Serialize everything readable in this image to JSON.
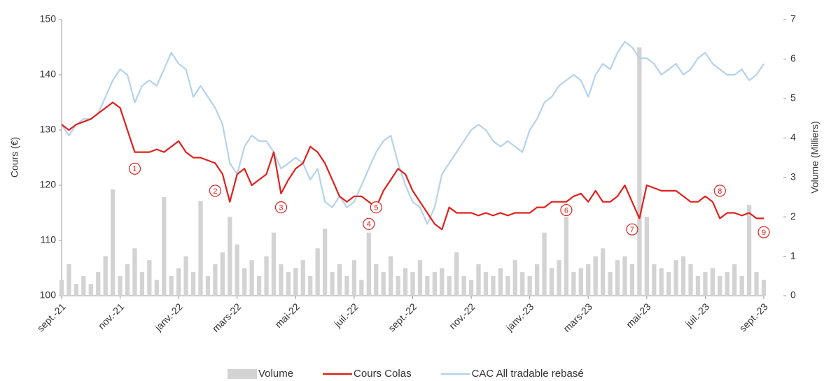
{
  "chart_data": {
    "type": "line",
    "ylabel": "Cours (€)",
    "y2label": "Volume (Milliers)",
    "ylim": [
      100,
      150
    ],
    "yticks": [
      100,
      110,
      120,
      130,
      140,
      150
    ],
    "y2lim": [
      0,
      7
    ],
    "y2ticks": [
      0,
      1,
      2,
      3,
      4,
      5,
      6,
      7
    ],
    "categories": [
      "sept.-21",
      null,
      null,
      null,
      null,
      null,
      null,
      null,
      "nov.-21",
      null,
      null,
      null,
      null,
      null,
      null,
      null,
      "janv.-22",
      null,
      null,
      null,
      null,
      null,
      null,
      null,
      "mars-22",
      null,
      null,
      null,
      null,
      null,
      null,
      null,
      "mai-22",
      null,
      null,
      null,
      null,
      null,
      null,
      null,
      "juil.-22",
      null,
      null,
      null,
      null,
      null,
      null,
      null,
      "sept.-22",
      null,
      null,
      null,
      null,
      null,
      null,
      null,
      "nov.-22",
      null,
      null,
      null,
      null,
      null,
      null,
      null,
      "janv.-23",
      null,
      null,
      null,
      null,
      null,
      null,
      null,
      "mars-23",
      null,
      null,
      null,
      null,
      null,
      null,
      null,
      "mai-23",
      null,
      null,
      null,
      null,
      null,
      null,
      null,
      "juil.-23",
      null,
      null,
      null,
      null,
      null,
      null,
      null,
      "sept.-23"
    ],
    "series": [
      {
        "name": "Volume",
        "type": "bar",
        "axis": "y2",
        "color": "#d3d3d3",
        "values": [
          0.4,
          0.8,
          0.3,
          0.5,
          0.3,
          0.6,
          1.0,
          2.7,
          0.5,
          0.8,
          1.2,
          0.6,
          0.9,
          0.4,
          2.5,
          0.5,
          0.7,
          1.0,
          0.6,
          2.4,
          0.5,
          0.8,
          1.1,
          2.0,
          1.3,
          0.7,
          0.9,
          0.5,
          1.0,
          1.6,
          0.8,
          0.6,
          0.7,
          0.9,
          0.5,
          1.2,
          1.7,
          0.6,
          0.8,
          0.5,
          0.9,
          0.4,
          1.6,
          0.8,
          0.6,
          1.0,
          0.5,
          0.7,
          0.6,
          0.9,
          0.5,
          0.6,
          0.7,
          0.5,
          1.1,
          0.5,
          0.4,
          0.8,
          0.6,
          0.5,
          0.7,
          0.5,
          0.9,
          0.6,
          0.5,
          0.8,
          1.6,
          0.7,
          0.9,
          2.0,
          0.6,
          0.7,
          0.8,
          1.0,
          1.2,
          0.6,
          0.9,
          1.0,
          0.8,
          6.3,
          2.0,
          0.8,
          0.7,
          0.6,
          0.9,
          1.0,
          0.8,
          0.5,
          0.6,
          0.7,
          0.5,
          0.6,
          0.8,
          0.5,
          2.3,
          0.6,
          0.4
        ]
      },
      {
        "name": "Cours Colas",
        "type": "line",
        "color": "#e0201c",
        "values": [
          131,
          130,
          131,
          131.5,
          132,
          133,
          134,
          135,
          134,
          130,
          126,
          126,
          126,
          126.5,
          126,
          127,
          128,
          126,
          125,
          125,
          124.5,
          124,
          122,
          117,
          122,
          123,
          120,
          121,
          122,
          126,
          118.5,
          121,
          123,
          124,
          127,
          126,
          124,
          121,
          118,
          117,
          118,
          118,
          117,
          116,
          119,
          121,
          123,
          122,
          119,
          117,
          115,
          113,
          112,
          116,
          115,
          115,
          115,
          114.5,
          115,
          114.5,
          115,
          114.5,
          115,
          115,
          115,
          116,
          116,
          117,
          117,
          117,
          118,
          118.5,
          117,
          119,
          117,
          117,
          118,
          120,
          117,
          114,
          120,
          119.5,
          119,
          119,
          119,
          118,
          117,
          117,
          118,
          117,
          114,
          115,
          115,
          114.5,
          115,
          114,
          114
        ]
      },
      {
        "name": "CAC All tradable rebasé",
        "type": "line",
        "color": "#b4d3ec",
        "values": [
          131,
          129,
          131,
          132,
          132,
          133,
          136,
          139,
          141,
          140,
          135,
          138,
          139,
          138,
          141,
          144,
          142,
          141,
          136,
          138,
          136,
          134,
          131,
          124,
          122,
          127,
          129,
          128,
          128,
          126,
          123,
          124,
          125,
          124,
          121,
          123,
          117,
          116,
          118,
          116,
          117,
          120,
          123,
          126,
          128,
          129,
          124,
          120,
          117,
          116,
          113,
          116,
          122,
          124,
          126,
          128,
          130,
          131,
          130,
          128,
          127,
          128,
          127,
          126,
          130,
          132,
          135,
          136,
          138,
          139,
          140,
          139,
          136,
          140,
          142,
          141,
          144,
          146,
          145,
          143,
          143,
          142,
          140,
          141,
          142,
          140,
          141,
          143,
          144,
          142,
          141,
          140,
          140,
          141,
          139,
          140,
          142
        ]
      }
    ],
    "annotations": [
      {
        "label": "1",
        "x": 10,
        "y": 123
      },
      {
        "label": "2",
        "x": 21,
        "y": 119
      },
      {
        "label": "3",
        "x": 30,
        "y": 116
      },
      {
        "label": "4",
        "x": 42,
        "y": 113
      },
      {
        "label": "5",
        "x": 43,
        "y": 116
      },
      {
        "label": "6",
        "x": 69,
        "y": 115.5
      },
      {
        "label": "7",
        "x": 78,
        "y": 112
      },
      {
        "label": "8",
        "x": 90,
        "y": 119
      },
      {
        "label": "9",
        "x": 96,
        "y": 111.5
      }
    ]
  }
}
